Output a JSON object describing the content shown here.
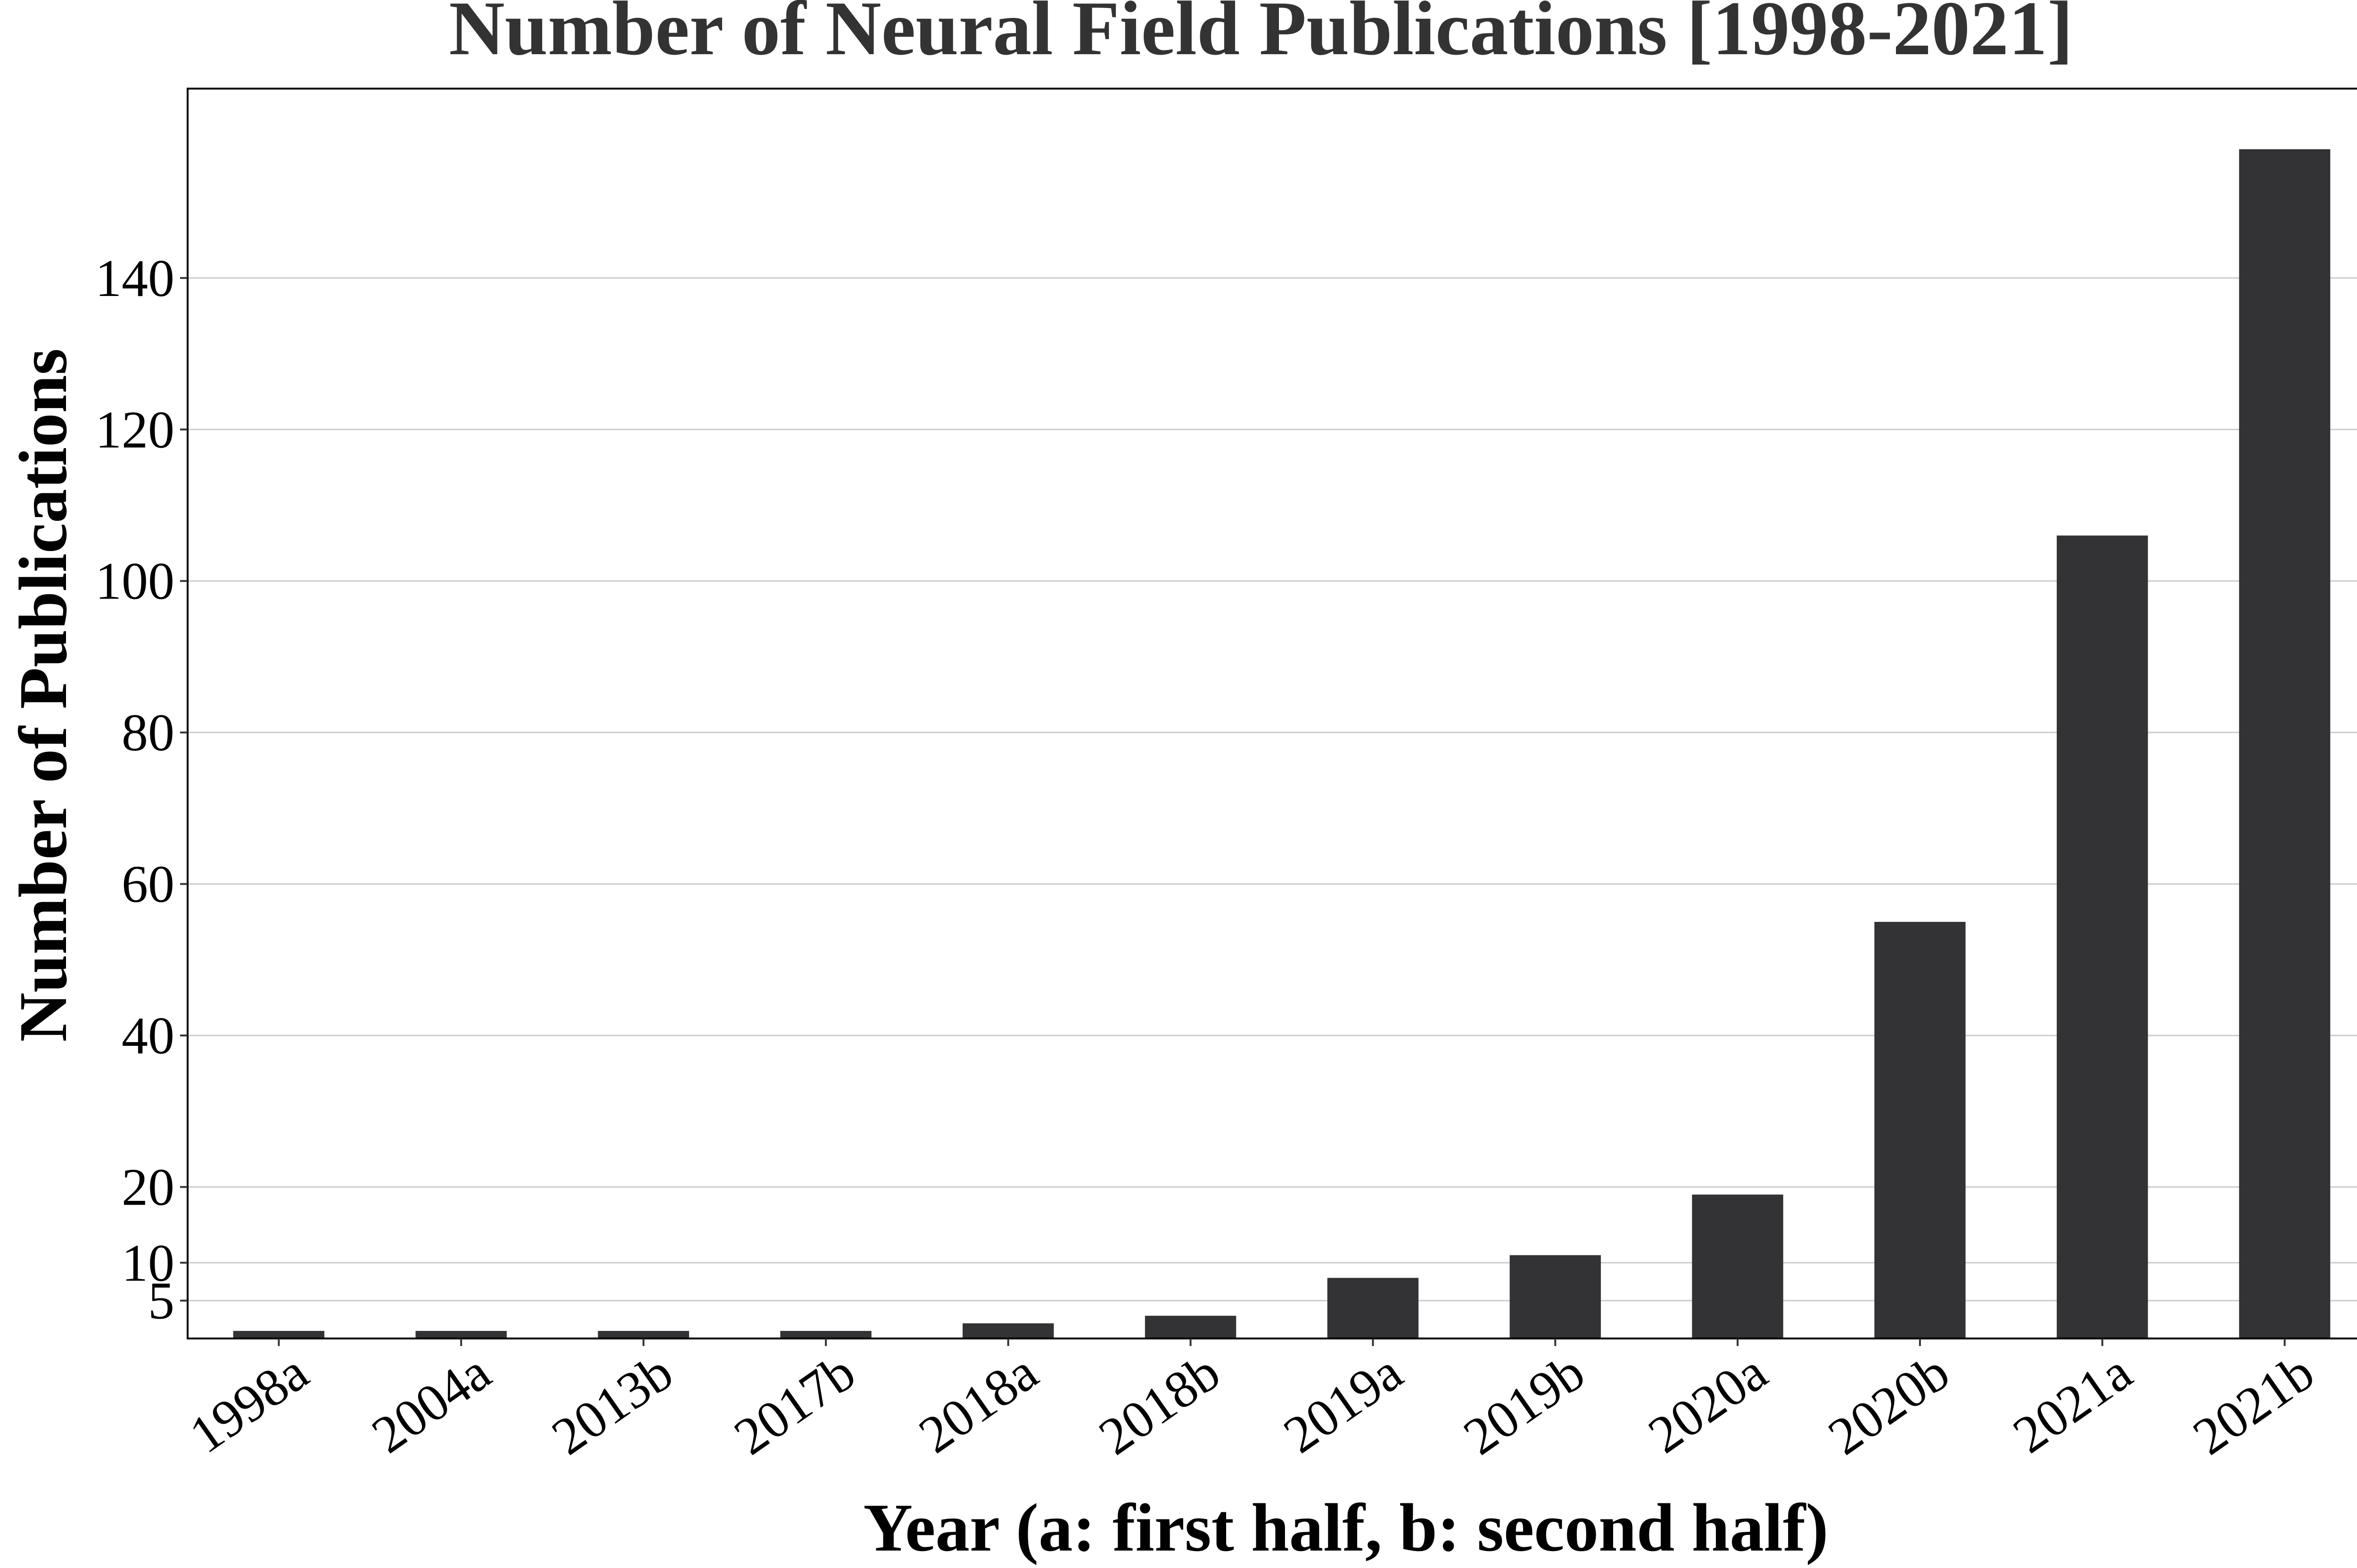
{
  "chart_data": {
    "type": "bar",
    "title": "Number of Neural Field Publications [1998-2021]",
    "xlabel": "Year (a: first half, b: second half)",
    "ylabel": "Number of Publications",
    "categories": [
      "1998a",
      "2004a",
      "2013b",
      "2017b",
      "2018a",
      "2018b",
      "2019a",
      "2019b",
      "2020a",
      "2020b",
      "2021a",
      "2021b"
    ],
    "values": [
      1,
      1,
      1,
      1,
      2,
      3,
      8,
      11,
      19,
      55,
      106,
      157
    ],
    "ylim": [
      0,
      165
    ],
    "yticks": [
      5,
      10,
      20,
      40,
      60,
      80,
      100,
      120,
      140
    ],
    "grid": "horizontal",
    "bar_color": "#333336"
  }
}
